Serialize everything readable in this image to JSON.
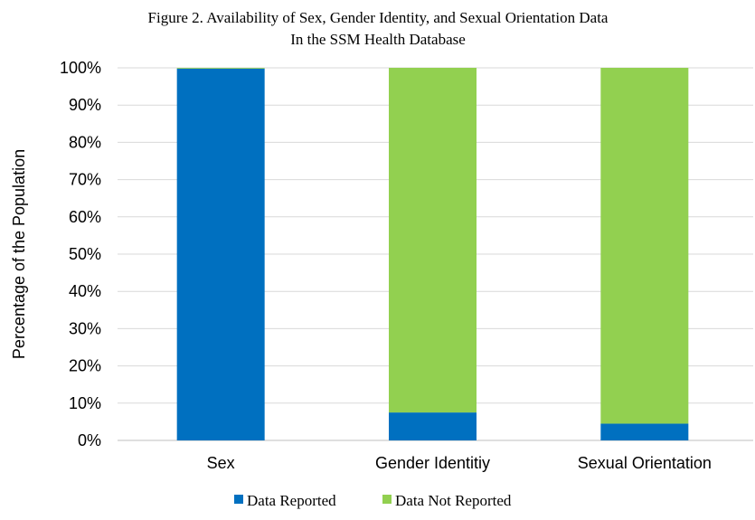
{
  "chart_data": {
    "type": "bar",
    "stacked": true,
    "title": "Figure 2.  Availability of Sex, Gender Identity, and Sexual Orientation Data",
    "subtitle": "In the SSM  Health Database",
    "xlabel": "",
    "ylabel": "Percentage of the Population",
    "ylim": [
      0,
      100
    ],
    "yticks": [
      "0%",
      "10%",
      "20%",
      "30%",
      "40%",
      "50%",
      "60%",
      "70%",
      "80%",
      "90%",
      "100%"
    ],
    "categories": [
      "Sex",
      "Gender Identitiy",
      "Sexual Orientation"
    ],
    "series": [
      {
        "name": "Data Reported",
        "color": "#0070C0",
        "values": [
          99.8,
          7.5,
          4.5
        ]
      },
      {
        "name": "Data Not Reported",
        "color": "#92D050",
        "values": [
          0.2,
          92.5,
          95.5
        ]
      }
    ],
    "grid": true,
    "legend_position": "bottom",
    "gridline_color": "#D9D9D9",
    "axis_color": "#BFBFBF"
  }
}
